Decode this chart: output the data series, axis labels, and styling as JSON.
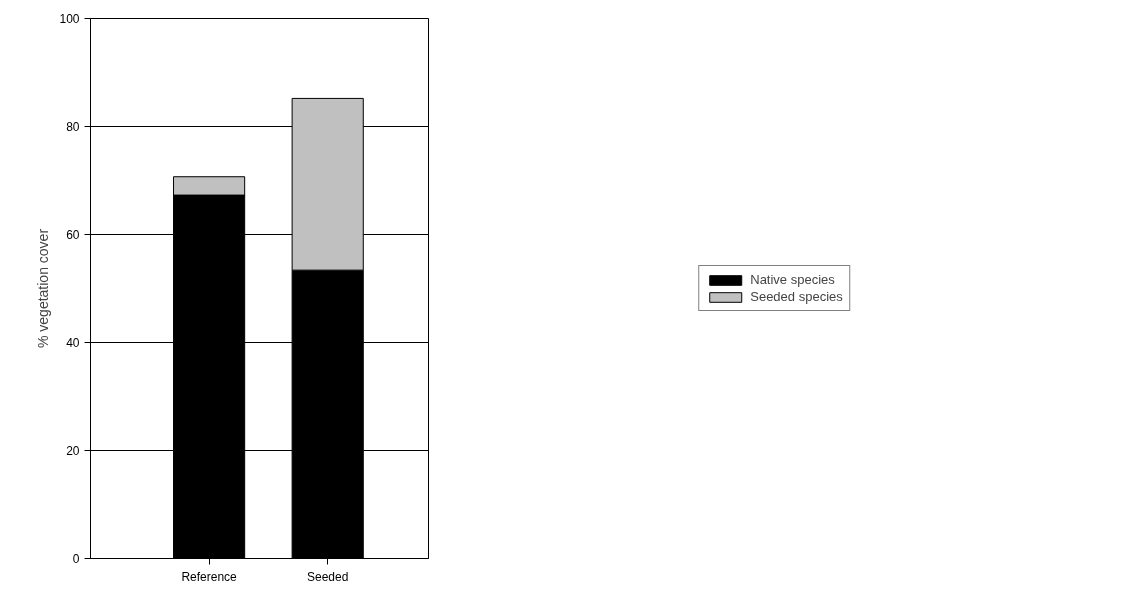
{
  "chart_data": {
    "type": "bar",
    "stacked": true,
    "ylabel": "% vegetation cover",
    "categories": [
      "Reference",
      "Seeded"
    ],
    "series": [
      {
        "name": "Native species",
        "color": "#000000",
        "values": [
          67.3,
          53.4
        ]
      },
      {
        "name": "Seeded species",
        "color": "#c0c0c0",
        "values": [
          3.4,
          31.8
        ]
      }
    ],
    "ylim": [
      0,
      100
    ],
    "yticks": [
      0,
      20,
      40,
      60,
      80,
      100
    ],
    "grid": "y",
    "legend": "right"
  }
}
